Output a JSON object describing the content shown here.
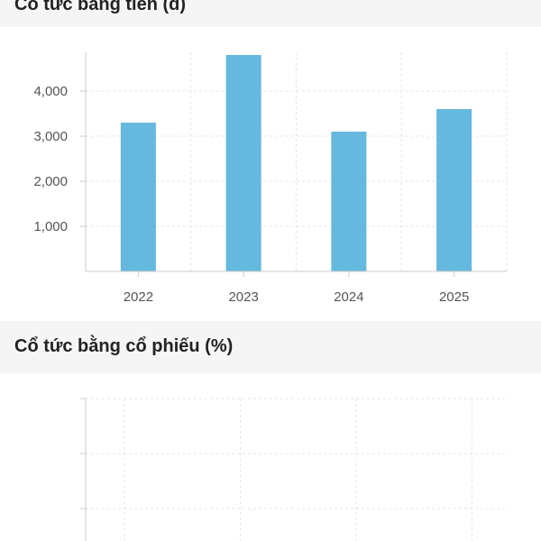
{
  "sections": [
    {
      "title": "Cổ tức bằng tiền (đ)"
    },
    {
      "title": "Cổ tức bằng cổ phiếu (%)"
    }
  ],
  "colors": {
    "bar": "#65b8de",
    "grid": "#e6e6e6",
    "axis": "#cccccc",
    "header_bg": "#f5f5f5"
  },
  "chart_data": [
    {
      "type": "bar",
      "title": "Cổ tức bằng tiền (đ)",
      "categories": [
        "2022",
        "2023",
        "2024",
        "2025"
      ],
      "values": [
        3300,
        4800,
        3100,
        3600
      ],
      "yticks": [
        1000,
        2000,
        3000,
        4000
      ],
      "ytick_labels": [
        "1,000",
        "2,000",
        "3,000",
        "4,000"
      ],
      "ylim": [
        0,
        5000
      ],
      "grid": true
    },
    {
      "type": "bar",
      "title": "Cổ tức bằng cổ phiếu (%)",
      "categories": [],
      "values": [],
      "grid": true
    }
  ]
}
